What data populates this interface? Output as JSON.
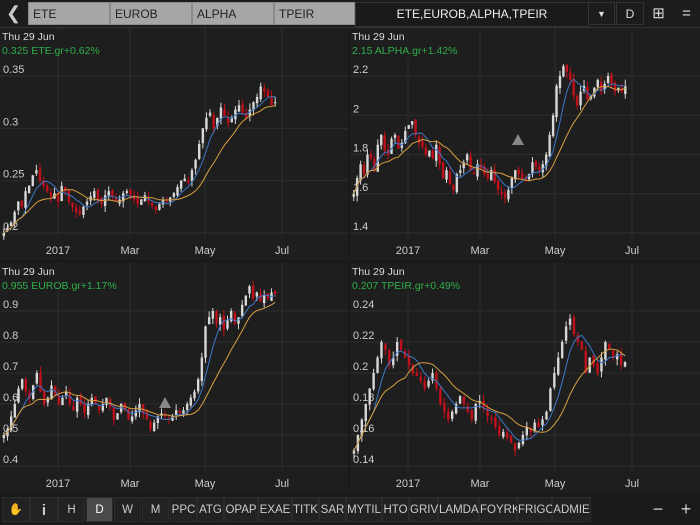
{
  "topbar": {
    "back_icon": "chevron-left-icon",
    "tabs": [
      "ETE",
      "EUROB",
      "ALPHA",
      "TPEIR"
    ],
    "combo": "ETE,EUROB,ALPHA,TPEIR",
    "dropdown_icon": "caret-down-icon",
    "period": "D",
    "grid_icon": "grid-layout-icon",
    "menu_icon": "menu-icon"
  },
  "colors": {
    "up": "#d8d8d8",
    "down": "#c0101a",
    "ma_fast": "#3b78c8",
    "ma_slow": "#d9a040",
    "quote": "#2fae4a",
    "grid": "#2d2d2d"
  },
  "charts": [
    {
      "date": "Thu 29 Jun",
      "quote": "0.325 ETE.gr+0.62%",
      "yticks": [
        "0.35",
        "0.3",
        "0.25",
        "0.2"
      ],
      "yvals": [
        0.35,
        0.3,
        0.25,
        0.2
      ],
      "xticks": [
        "2017",
        "Mar",
        "May",
        "Jul"
      ],
      "closes": [
        0.2,
        0.205,
        0.21,
        0.22,
        0.23,
        0.225,
        0.24,
        0.245,
        0.255,
        0.26,
        0.25,
        0.245,
        0.24,
        0.235,
        0.238,
        0.23,
        0.245,
        0.24,
        0.23,
        0.225,
        0.22,
        0.218,
        0.225,
        0.23,
        0.235,
        0.24,
        0.232,
        0.228,
        0.236,
        0.24,
        0.235,
        0.23,
        0.232,
        0.238,
        0.24,
        0.236,
        0.232,
        0.228,
        0.232,
        0.236,
        0.23,
        0.226,
        0.222,
        0.228,
        0.232,
        0.23,
        0.234,
        0.238,
        0.244,
        0.25,
        0.252,
        0.248,
        0.26,
        0.27,
        0.285,
        0.3,
        0.31,
        0.315,
        0.3,
        0.31,
        0.32,
        0.312,
        0.305,
        0.31,
        0.318,
        0.322,
        0.315,
        0.31,
        0.318,
        0.325,
        0.33,
        0.34,
        0.335,
        0.33,
        0.322,
        0.325
      ]
    },
    {
      "date": "Thu 29 Jun",
      "quote": "2.15 ALPHA.gr+1.42%",
      "yticks": [
        "2.2",
        "2",
        "1.8",
        "1.6",
        "1.4"
      ],
      "yvals": [
        2.2,
        2,
        1.8,
        1.6,
        1.4
      ],
      "xticks": [
        "2017",
        "Mar",
        "May",
        "Jul"
      ],
      "marker": true,
      "closes": [
        1.6,
        1.68,
        1.75,
        1.7,
        1.8,
        1.78,
        1.72,
        1.85,
        1.9,
        1.82,
        1.8,
        1.88,
        1.9,
        1.83,
        1.86,
        1.92,
        1.95,
        1.97,
        1.9,
        1.86,
        1.84,
        1.8,
        1.82,
        1.78,
        1.85,
        1.75,
        1.68,
        1.72,
        1.65,
        1.62,
        1.7,
        1.72,
        1.76,
        1.8,
        1.72,
        1.7,
        1.75,
        1.73,
        1.7,
        1.68,
        1.72,
        1.66,
        1.62,
        1.6,
        1.58,
        1.62,
        1.68,
        1.72,
        1.7,
        1.68,
        1.67,
        1.7,
        1.76,
        1.74,
        1.72,
        1.75,
        1.8,
        1.9,
        2.0,
        2.15,
        2.2,
        2.25,
        2.22,
        2.18,
        2.1,
        2.05,
        2.12,
        2.15,
        2.08,
        2.1,
        2.14,
        2.18,
        2.12,
        2.16,
        2.2,
        2.16,
        2.12,
        2.14,
        2.12,
        2.15
      ]
    },
    {
      "date": "Thu 29 Jun",
      "quote": "0.955 EUROB.gr+1.17%",
      "yticks": [
        "0.9",
        "0.8",
        "0.7",
        "0.6",
        "0.5",
        "0.4"
      ],
      "yvals": [
        0.9,
        0.8,
        0.7,
        0.6,
        0.5,
        0.4
      ],
      "xticks": [
        "2017",
        "Mar",
        "May",
        "Jul"
      ],
      "marker": true,
      "closes": [
        0.5,
        0.52,
        0.56,
        0.6,
        0.65,
        0.68,
        0.64,
        0.62,
        0.66,
        0.7,
        0.64,
        0.6,
        0.62,
        0.66,
        0.63,
        0.6,
        0.62,
        0.64,
        0.6,
        0.58,
        0.62,
        0.6,
        0.57,
        0.6,
        0.62,
        0.6,
        0.58,
        0.6,
        0.62,
        0.59,
        0.55,
        0.57,
        0.6,
        0.58,
        0.55,
        0.56,
        0.58,
        0.6,
        0.57,
        0.55,
        0.52,
        0.54,
        0.56,
        0.57,
        0.56,
        0.55,
        0.56,
        0.58,
        0.57,
        0.58,
        0.6,
        0.62,
        0.64,
        0.68,
        0.75,
        0.85,
        0.88,
        0.9,
        0.86,
        0.88,
        0.84,
        0.87,
        0.9,
        0.86,
        0.88,
        0.92,
        0.95,
        0.98,
        0.94,
        0.96,
        0.93,
        0.95,
        0.94,
        0.96,
        0.955
      ]
    },
    {
      "date": "Thu 29 Jun",
      "quote": "0.207 TPEIR.gr+0.49%",
      "yticks": [
        "0.24",
        "0.22",
        "0.2",
        "0.18",
        "0.16",
        "0.14"
      ],
      "yvals": [
        0.24,
        0.22,
        0.2,
        0.18,
        0.16,
        0.14
      ],
      "xticks": [
        "2017",
        "Mar",
        "May",
        "Jul"
      ],
      "closes": [
        0.15,
        0.16,
        0.17,
        0.18,
        0.19,
        0.2,
        0.21,
        0.22,
        0.215,
        0.205,
        0.21,
        0.22,
        0.215,
        0.21,
        0.205,
        0.2,
        0.198,
        0.195,
        0.19,
        0.195,
        0.2,
        0.19,
        0.18,
        0.175,
        0.17,
        0.175,
        0.18,
        0.185,
        0.18,
        0.175,
        0.17,
        0.18,
        0.182,
        0.178,
        0.172,
        0.17,
        0.165,
        0.16,
        0.162,
        0.158,
        0.155,
        0.15,
        0.155,
        0.16,
        0.165,
        0.162,
        0.168,
        0.165,
        0.17,
        0.175,
        0.19,
        0.2,
        0.21,
        0.22,
        0.23,
        0.235,
        0.225,
        0.22,
        0.215,
        0.2,
        0.21,
        0.205,
        0.2,
        0.21,
        0.22,
        0.215,
        0.21,
        0.212,
        0.205,
        0.207
      ]
    }
  ],
  "toolbar": {
    "hand_icon": "hand-pointer-icon",
    "info_icon": "info-icon",
    "periods": [
      "H",
      "D",
      "W",
      "M"
    ],
    "selected_period": "D",
    "symbols": [
      "PPC",
      "ATG",
      "OPAP",
      "EXAE",
      "TITK",
      "SAR",
      "MYTIL",
      "HTO",
      "GRIV",
      "LAMDA",
      "FOYRK",
      "FRIGO",
      "ADMIE"
    ],
    "zoom_out": "−",
    "zoom_in": "+"
  }
}
